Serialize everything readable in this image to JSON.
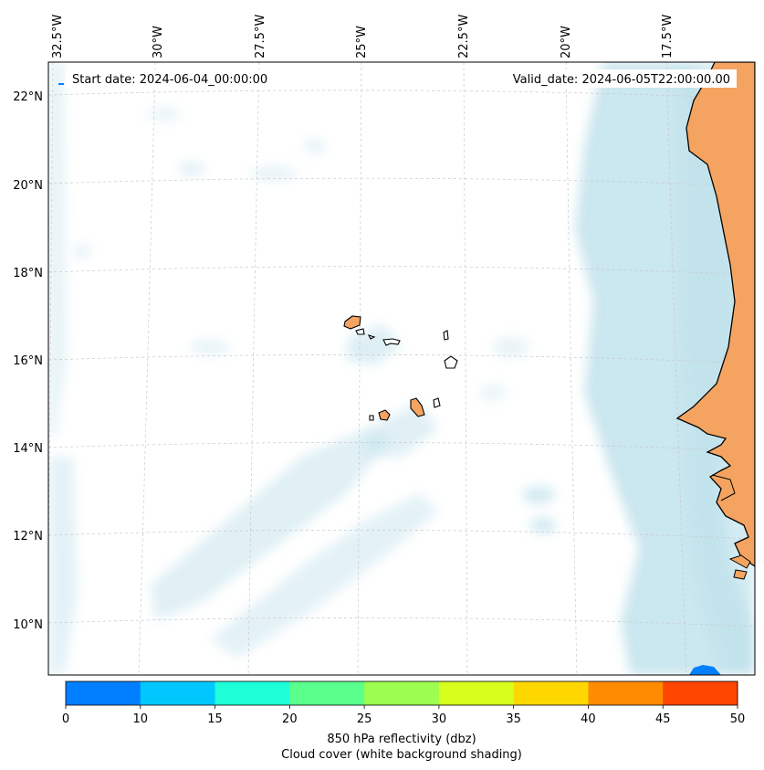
{
  "map": {
    "start_date": "Start date: 2024-06-04_00:00:00",
    "valid_date": "Valid_date: 2024-06-05T22:00:00.00",
    "lon_labels": [
      "32.5°W",
      "30°W",
      "27.5°W",
      "25°W",
      "22.5°W",
      "20°W",
      "17.5°W"
    ],
    "lat_labels": [
      "22°N",
      "20°N",
      "18°N",
      "16°N",
      "14°N",
      "12°N",
      "10°N"
    ]
  },
  "colorbar": {
    "ticks": [
      "0",
      "10",
      "15",
      "20",
      "25",
      "30",
      "35",
      "40",
      "45",
      "50"
    ],
    "colors": [
      "#0080ff",
      "#00c8ff",
      "#1effd8",
      "#5aff8c",
      "#9cff50",
      "#d6ff1e",
      "#ffd700",
      "#ff8c00",
      "#ff4500"
    ],
    "label_line1": "850 hPa reflectivity (dbz)",
    "label_line2": "Cloud cover (white background shading)"
  },
  "colors": {
    "land": "#f4a460",
    "cloud": "#add8e6",
    "coast": "#000000",
    "grid": "#c8c8c8"
  }
}
